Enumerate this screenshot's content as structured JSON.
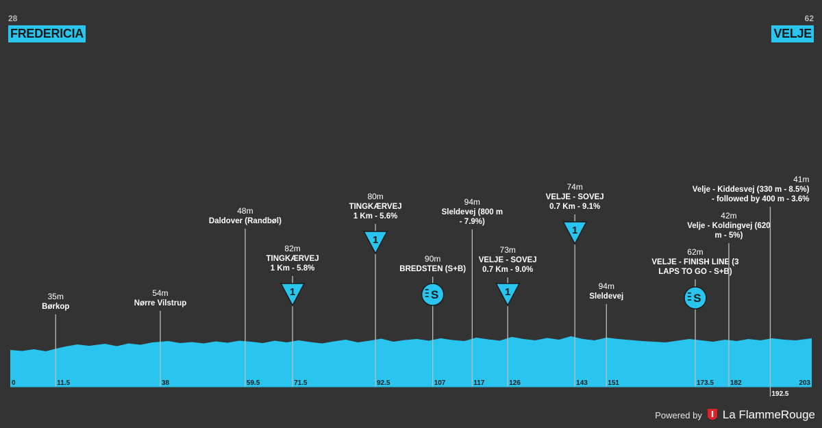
{
  "header": {
    "start": {
      "altitude": "28",
      "name": "FREDERICIA"
    },
    "end": {
      "altitude": "62",
      "name": "VELJE"
    }
  },
  "footer": {
    "powered_by": "Powered by",
    "brand": "La FlammeRouge"
  },
  "chart_data": {
    "type": "area",
    "title": "",
    "xlabel": "",
    "ylabel": "",
    "colors": {
      "profile": "#29c5ee",
      "background": "#333333",
      "marker_line": "#bdbdbd",
      "text": "#ffffff",
      "label_bg": "#29c5ee"
    },
    "xlim": [
      0,
      203
    ],
    "ylim": [
      0,
      300
    ],
    "distance_ticks": [
      "0",
      "11.5",
      "38",
      "59.5",
      "71.5",
      "92.5",
      "107",
      "117",
      "126",
      "143",
      "151",
      "173.5",
      "182",
      "192.5",
      "203"
    ],
    "profile": {
      "x": [
        0,
        3,
        6,
        9,
        12,
        14,
        17,
        20,
        24,
        27,
        30,
        33,
        36,
        40,
        43,
        46,
        49,
        52,
        55,
        58,
        61,
        64,
        67,
        70,
        73,
        76,
        79,
        82,
        85,
        88,
        91,
        94,
        97,
        100,
        103,
        106,
        109,
        112,
        115,
        118,
        121,
        124,
        127,
        130,
        133,
        136,
        139,
        142,
        145,
        148,
        151,
        154,
        157,
        160,
        163,
        166,
        169,
        172,
        175,
        178,
        181,
        184,
        187,
        190,
        193,
        196,
        199,
        203
      ],
      "y": [
        28,
        25,
        30,
        24,
        33,
        38,
        44,
        40,
        46,
        39,
        47,
        43,
        50,
        54,
        48,
        51,
        47,
        53,
        49,
        55,
        52,
        48,
        55,
        50,
        56,
        51,
        47,
        53,
        58,
        50,
        55,
        61,
        52,
        57,
        60,
        55,
        62,
        57,
        54,
        64,
        59,
        55,
        66,
        60,
        56,
        63,
        58,
        68,
        60,
        56,
        64,
        60,
        57,
        54,
        52,
        50,
        55,
        60,
        56,
        52,
        58,
        54,
        60,
        56,
        62,
        58,
        56,
        62
      ]
    },
    "markers": [
      {
        "km": 11.5,
        "altitude": "35m",
        "name": [
          "Børkop"
        ],
        "icon": ""
      },
      {
        "km": 38,
        "altitude": "54m",
        "name": [
          "Nørre Vilstrup"
        ],
        "icon": ""
      },
      {
        "km": 59.5,
        "altitude": "48m",
        "name": [
          "Daldover (Randbøl)"
        ],
        "icon": ""
      },
      {
        "km": 71.5,
        "altitude": "82m",
        "name": [
          "TINGKÆRVEJ",
          "1 Km - 5.8%"
        ],
        "icon": "climb",
        "category": "1"
      },
      {
        "km": 92.5,
        "altitude": "80m",
        "name": [
          "TINGKÆRVEJ",
          "1 Km - 5.6%"
        ],
        "icon": "climb",
        "category": "1"
      },
      {
        "km": 107,
        "altitude": "90m",
        "name": [
          "BREDSTEN (S+B)"
        ],
        "icon": "sprint",
        "category": "S"
      },
      {
        "km": 117,
        "altitude": "94m",
        "name": [
          "Sleldevej (800 m",
          "- 7.9%)"
        ],
        "icon": ""
      },
      {
        "km": 126,
        "altitude": "73m",
        "name": [
          "VELJE - SOVEJ",
          "0.7 Km - 9.0%"
        ],
        "icon": "climb",
        "category": "1"
      },
      {
        "km": 143,
        "altitude": "74m",
        "name": [
          "VELJE - SOVEJ",
          "0.7 Km - 9.1%"
        ],
        "icon": "climb",
        "category": "1"
      },
      {
        "km": 151,
        "altitude": "94m",
        "name": [
          "Sleldevej"
        ],
        "icon": ""
      },
      {
        "km": 173.5,
        "altitude": "62m",
        "name": [
          "VELJE - FINISH LINE (3",
          "LAPS TO GO - S+B)"
        ],
        "icon": "sprint",
        "category": "S"
      },
      {
        "km": 182,
        "altitude": "42m",
        "name": [
          "Velje - Koldingvej (620",
          "m - 5%)"
        ],
        "icon": ""
      },
      {
        "km": 192.5,
        "altitude": "41m",
        "name": [
          "Velje - Kiddesvej (330 m - 8.5%)",
          "- followed by 400 m - 3.6%"
        ],
        "icon": ""
      }
    ]
  }
}
